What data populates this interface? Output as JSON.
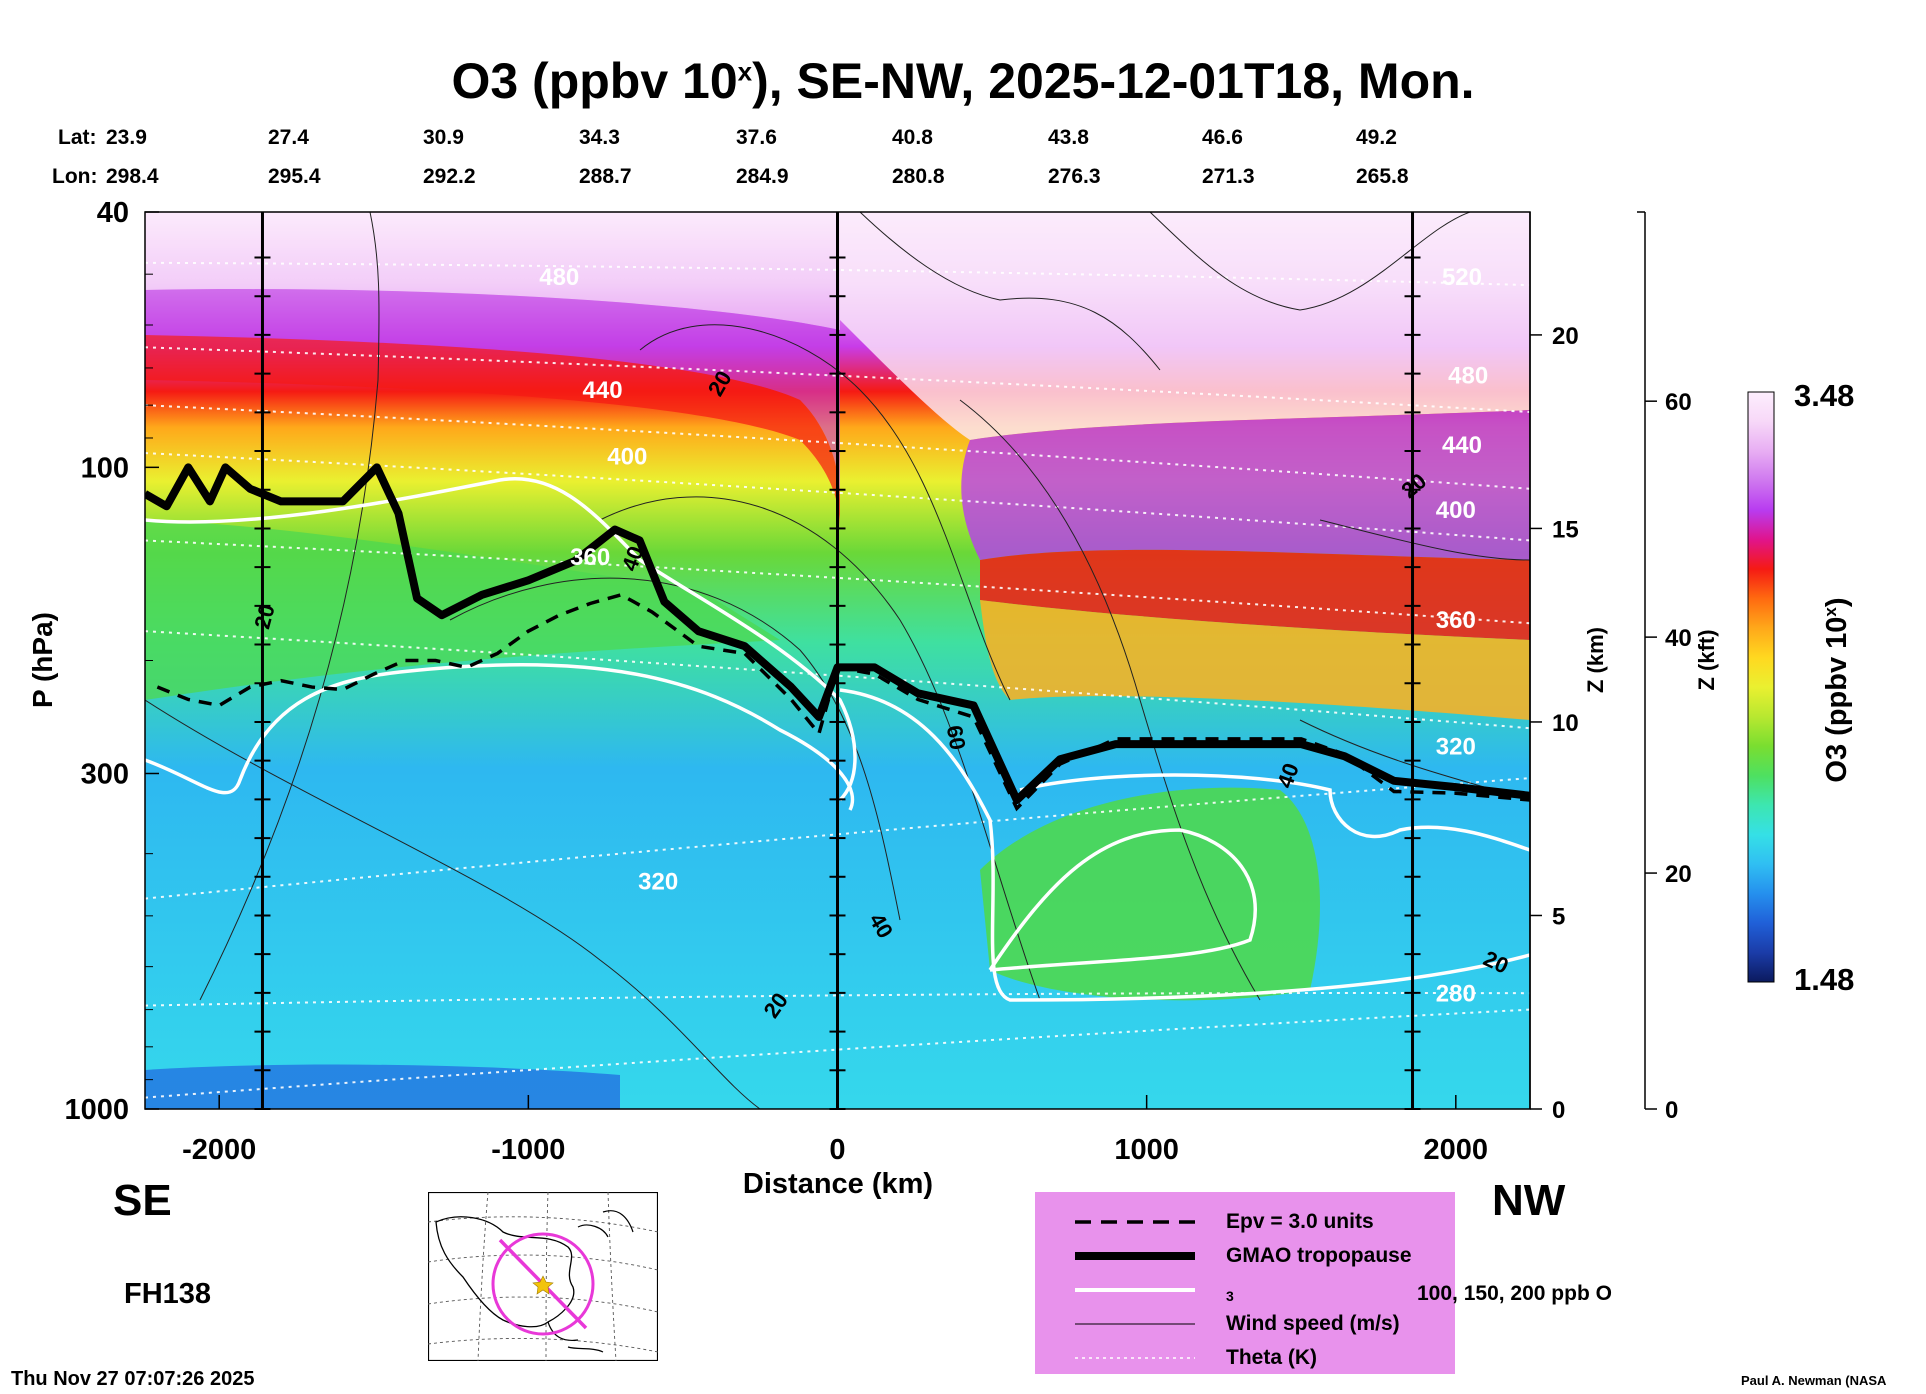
{
  "chart_data": {
    "type": "heatmap",
    "title_prefix": "O3 (ppbv 10",
    "title_sup": "x",
    "title_suffix": "), SE-NW, 2025-12-01T18, Mon.",
    "lat_label": "Lat:",
    "lon_label": "Lon:",
    "lat_values": [
      "23.9",
      "27.4",
      "30.9",
      "34.3",
      "37.6",
      "40.8",
      "43.8",
      "46.6",
      "49.2"
    ],
    "lon_values": [
      "298.4",
      "295.4",
      "292.2",
      "288.7",
      "284.9",
      "280.8",
      "276.3",
      "271.3",
      "265.8"
    ],
    "xlabel": "Distance (km)",
    "xlim": [
      -2240,
      2240
    ],
    "x_ticks": [
      -2000,
      -1000,
      0,
      1000,
      2000
    ],
    "x_tick_labels": [
      "-2000",
      "-1000",
      "0",
      "1000",
      "2000"
    ],
    "ylabel": "P (hPa)",
    "ylim_hpa": [
      1000,
      40
    ],
    "y_ticks": [
      40,
      100,
      300,
      1000
    ],
    "y_tick_labels": [
      "40",
      "100",
      "300",
      "1000"
    ],
    "z_km_label": "Z (km)",
    "z_km_ticks": [
      "0",
      "5",
      "10",
      "15",
      "20"
    ],
    "z_kft_label": "Z (kft)",
    "z_kft_ticks": [
      "0",
      "20",
      "40",
      "60"
    ],
    "colorbar_label_prefix": "O3 (ppbv 10",
    "colorbar_label_sup": "x",
    "colorbar_label_suffix": ")",
    "colorbar_max": "3.48",
    "colorbar_min": "1.48",
    "colorbar_colors": [
      "#0b1a5e",
      "#1b3ca8",
      "#2060d8",
      "#2590ee",
      "#30bff2",
      "#35e0e6",
      "#3de6b0",
      "#4ee060",
      "#7ade30",
      "#b8e830",
      "#eaf030",
      "#ffd820",
      "#ffa81a",
      "#ff6a10",
      "#f51a14",
      "#e0148c",
      "#b83cf0",
      "#cf78ef",
      "#e8aef3",
      "#f7d8f8",
      "#fdeefd"
    ],
    "section_lines_km": [
      -1860,
      0,
      1860
    ],
    "tropopause_hpa": [
      [
        -2240,
        110
      ],
      [
        -2170,
        115
      ],
      [
        -2100,
        100
      ],
      [
        -2030,
        113
      ],
      [
        -1980,
        100
      ],
      [
        -1900,
        108
      ],
      [
        -1800,
        113
      ],
      [
        -1600,
        113
      ],
      [
        -1490,
        100
      ],
      [
        -1420,
        118
      ],
      [
        -1360,
        160
      ],
      [
        -1280,
        170
      ],
      [
        -1150,
        158
      ],
      [
        -1000,
        150
      ],
      [
        -850,
        140
      ],
      [
        -720,
        125
      ],
      [
        -640,
        130
      ],
      [
        -560,
        162
      ],
      [
        -450,
        180
      ],
      [
        -300,
        190
      ],
      [
        -150,
        220
      ],
      [
        -60,
        245
      ],
      [
        0,
        205
      ],
      [
        120,
        205
      ],
      [
        260,
        225
      ],
      [
        440,
        235
      ],
      [
        580,
        330
      ],
      [
        720,
        285
      ],
      [
        900,
        270
      ],
      [
        1200,
        270
      ],
      [
        1500,
        270
      ],
      [
        1640,
        282
      ],
      [
        1800,
        308
      ],
      [
        2000,
        315
      ],
      [
        2240,
        325
      ]
    ],
    "epv_hpa": [
      [
        -2200,
        220
      ],
      [
        -2100,
        230
      ],
      [
        -2000,
        235
      ],
      [
        -1900,
        220
      ],
      [
        -1800,
        215
      ],
      [
        -1700,
        220
      ],
      [
        -1600,
        222
      ],
      [
        -1500,
        210
      ],
      [
        -1400,
        200
      ],
      [
        -1300,
        200
      ],
      [
        -1200,
        205
      ],
      [
        -1100,
        195
      ],
      [
        -1000,
        180
      ],
      [
        -900,
        170
      ],
      [
        -800,
        163
      ],
      [
        -700,
        158
      ],
      [
        -600,
        168
      ],
      [
        -450,
        190
      ],
      [
        -300,
        195
      ],
      [
        -150,
        230
      ],
      [
        -60,
        260
      ],
      [
        0,
        205
      ],
      [
        120,
        210
      ],
      [
        260,
        230
      ],
      [
        440,
        245
      ],
      [
        580,
        340
      ],
      [
        720,
        290
      ],
      [
        900,
        265
      ],
      [
        1200,
        265
      ],
      [
        1500,
        265
      ],
      [
        1640,
        280
      ],
      [
        1800,
        320
      ],
      [
        2000,
        322
      ],
      [
        2240,
        330
      ]
    ],
    "theta_labels": [
      {
        "text": "480",
        "km": -900,
        "hpa": 52
      },
      {
        "text": "440",
        "km": -760,
        "hpa": 78
      },
      {
        "text": "400",
        "km": -680,
        "hpa": 99
      },
      {
        "text": "360",
        "km": -800,
        "hpa": 142
      },
      {
        "text": "320",
        "km": -580,
        "hpa": 455
      },
      {
        "text": "520",
        "km": 2020,
        "hpa": 52
      },
      {
        "text": "480",
        "km": 2040,
        "hpa": 74
      },
      {
        "text": "440",
        "km": 2020,
        "hpa": 95
      },
      {
        "text": "400",
        "km": 2000,
        "hpa": 120
      },
      {
        "text": "360",
        "km": 2000,
        "hpa": 178
      },
      {
        "text": "320",
        "km": 2000,
        "hpa": 280
      },
      {
        "text": "280",
        "km": 2000,
        "hpa": 680
      }
    ],
    "wind_labels": [
      {
        "text": "20",
        "km": -360,
        "hpa": 75,
        "rot": -60
      },
      {
        "text": "20",
        "km": -1830,
        "hpa": 172,
        "rot": -75
      },
      {
        "text": "40",
        "km": -640,
        "hpa": 140,
        "rot": -70
      },
      {
        "text": "60",
        "km": 360,
        "hpa": 265,
        "rot": 80
      },
      {
        "text": "40",
        "km": 120,
        "hpa": 525,
        "rot": 60
      },
      {
        "text": "20",
        "km": -180,
        "hpa": 700,
        "rot": -55
      },
      {
        "text": "40",
        "km": 1480,
        "hpa": 305,
        "rot": -70
      },
      {
        "text": "20",
        "km": 1880,
        "hpa": 109,
        "rot": -40
      },
      {
        "text": "20",
        "km": 2120,
        "hpa": 605,
        "rot": 25
      }
    ]
  },
  "footer": {
    "left_direction": "SE",
    "right_direction": "NW",
    "forecast_hour": "FH138",
    "timestamp": "Thu Nov 27 07:07:26 2025",
    "credit": "Paul A. Newman (NASA"
  },
  "legend": {
    "epv": "Epv = 3.0 units",
    "tropopause": "GMAO tropopause",
    "ozone_prefix": "100, 150, 200 ppb O",
    "ozone_sub": "3",
    "wind": "Wind speed (m/s)",
    "theta": "Theta (K)"
  },
  "colors": {
    "legend_background": "#e892ec",
    "route_line": "#e838d8",
    "center_marker": "#f2c40c"
  }
}
